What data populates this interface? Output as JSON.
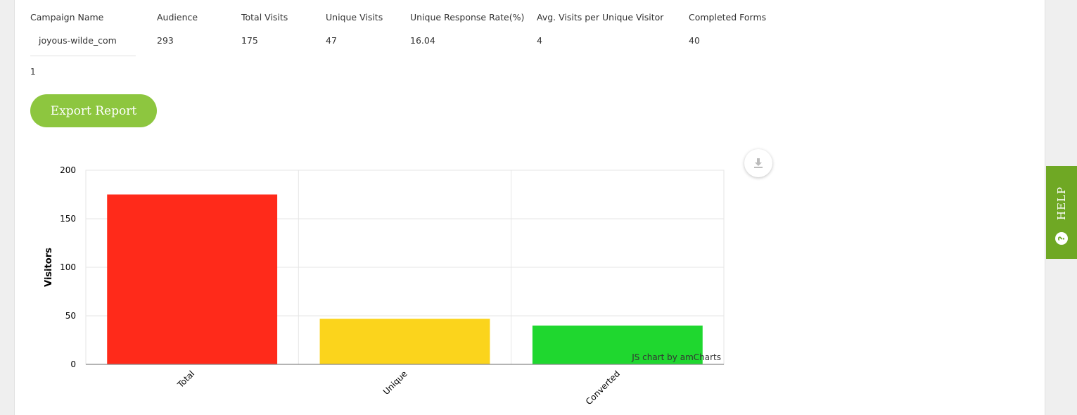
{
  "table": {
    "headers": [
      "Campaign Name",
      "Audience",
      "Total Visits",
      "Unique Visits",
      "Unique Response Rate(%)",
      "Avg. Visits per Unique Visitor",
      "Completed Forms"
    ],
    "row": [
      "joyous-wilde_com",
      "293",
      "175",
      "47",
      "16.04",
      "4",
      "40"
    ]
  },
  "pager": {
    "page": "1"
  },
  "export_button": {
    "label": "Export Report"
  },
  "help_tab": {
    "label": "HELP",
    "icon": "question-circle-icon"
  },
  "download_button": {
    "icon": "download-icon"
  },
  "chart_data": {
    "type": "bar",
    "categories": [
      "Total",
      "Unique",
      "Converted"
    ],
    "values": [
      175,
      47,
      40
    ],
    "colors": [
      "#ff2a1a",
      "#fbd41c",
      "#1fd72f"
    ],
    "ylabel": "Visitors",
    "xlabel": "",
    "ylim": [
      0,
      200
    ],
    "yticks": [
      0,
      50,
      100,
      150,
      200
    ],
    "grid": true,
    "credit": "JS chart by amCharts"
  }
}
